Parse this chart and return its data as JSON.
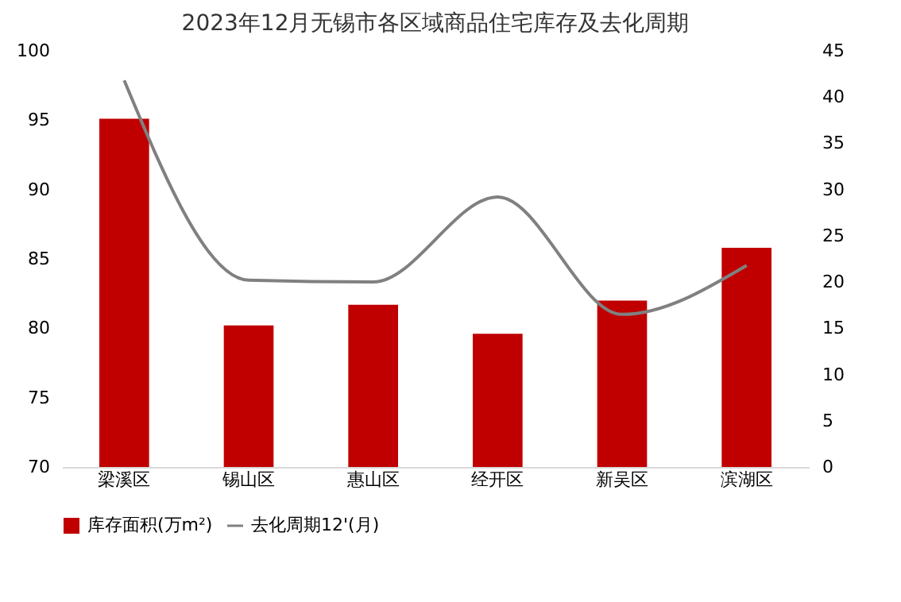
{
  "chart_data": {
    "type": "bar",
    "title": "2023年12月无锡市各区域商品住宅库存及去化周期",
    "categories": [
      "梁溪区",
      "锡山区",
      "惠山区",
      "经开区",
      "新吴区",
      "滨湖区"
    ],
    "series": [
      {
        "name": "库存面积(万m²)",
        "type": "bar",
        "color": "#c00000",
        "values": [
          95.1,
          80.2,
          81.7,
          79.6,
          82.0,
          85.8
        ]
      },
      {
        "name": "去化周期12'(月)",
        "type": "line",
        "axis": "y2",
        "color": "#808080",
        "values": [
          41.8,
          20.2,
          20.0,
          29.2,
          16.5,
          21.8
        ]
      }
    ],
    "ylim": [
      70,
      100
    ],
    "yticks": [
      70,
      75,
      80,
      85,
      90,
      95,
      100
    ],
    "y2lim": [
      0,
      45
    ],
    "y2ticks": [
      0,
      5,
      10,
      15,
      20,
      25,
      30,
      35,
      40,
      45
    ],
    "grid": false,
    "legend": "bottom",
    "marker": "none",
    "line_style": "solid"
  }
}
